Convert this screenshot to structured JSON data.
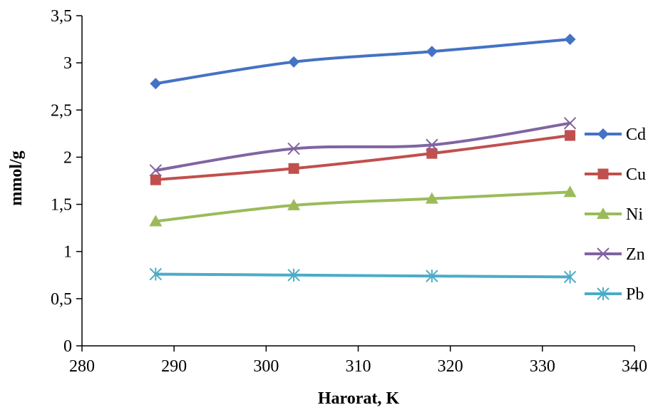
{
  "chart_data": {
    "type": "line",
    "title": "",
    "xlabel": "Harorat, K",
    "ylabel": "mmol/g",
    "xlim": [
      280,
      340
    ],
    "ylim": [
      0,
      3.5
    ],
    "x_ticks": [
      "280",
      "290",
      "300",
      "310",
      "320",
      "330",
      "340"
    ],
    "y_ticks": [
      "0",
      "0,5",
      "1",
      "1,5",
      "2",
      "2,5",
      "3",
      "3,5"
    ],
    "grid": false,
    "legend_position": "right",
    "x": [
      288,
      303,
      318,
      333
    ],
    "series": [
      {
        "name": "Cd",
        "values": [
          2.78,
          3.01,
          3.12,
          3.25
        ],
        "color": "#4472C4",
        "marker": "diamond"
      },
      {
        "name": "Cu",
        "values": [
          1.76,
          1.88,
          2.04,
          2.23
        ],
        "color": "#C0504D",
        "marker": "square"
      },
      {
        "name": "Ni",
        "values": [
          1.32,
          1.49,
          1.56,
          1.63
        ],
        "color": "#9BBB59",
        "marker": "triangle"
      },
      {
        "name": "Zn",
        "values": [
          1.86,
          2.09,
          2.13,
          2.36
        ],
        "color": "#8064A2",
        "marker": "x"
      },
      {
        "name": "Pb",
        "values": [
          0.76,
          0.75,
          0.74,
          0.73
        ],
        "color": "#4BACC6",
        "marker": "star"
      }
    ]
  }
}
